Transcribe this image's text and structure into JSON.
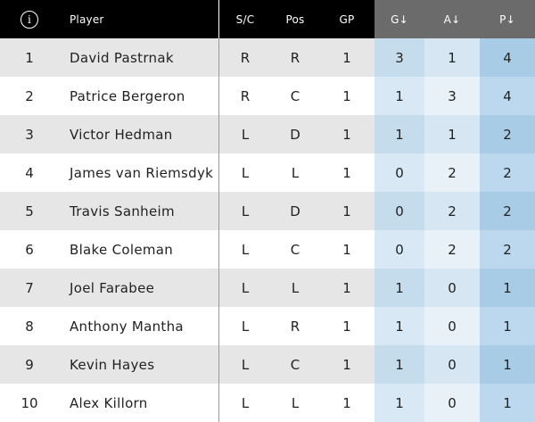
{
  "columns": {
    "player": "Player",
    "sc": "S/C",
    "pos": "Pos",
    "gp": "GP",
    "g": "G↓",
    "a": "A↓",
    "p": "P↓"
  },
  "info_icon": {
    "glyph": "i",
    "icon": "info-icon"
  },
  "colors": {
    "header_bg": "#000000",
    "sorted_header_bg": "#6b6b6b",
    "g_col": "#c4dcec",
    "a_col": "#d6e6f2",
    "p_col": "#a9cce6"
  },
  "rows": [
    {
      "rank": "1",
      "player": "David Pastrnak",
      "sc": "R",
      "pos": "R",
      "gp": "1",
      "g": "3",
      "a": "1",
      "p": "4"
    },
    {
      "rank": "2",
      "player": "Patrice Bergeron",
      "sc": "R",
      "pos": "C",
      "gp": "1",
      "g": "1",
      "a": "3",
      "p": "4"
    },
    {
      "rank": "3",
      "player": "Victor Hedman",
      "sc": "L",
      "pos": "D",
      "gp": "1",
      "g": "1",
      "a": "1",
      "p": "2"
    },
    {
      "rank": "4",
      "player": "James van Riemsdyk",
      "sc": "L",
      "pos": "L",
      "gp": "1",
      "g": "0",
      "a": "2",
      "p": "2"
    },
    {
      "rank": "5",
      "player": "Travis Sanheim",
      "sc": "L",
      "pos": "D",
      "gp": "1",
      "g": "0",
      "a": "2",
      "p": "2"
    },
    {
      "rank": "6",
      "player": "Blake Coleman",
      "sc": "L",
      "pos": "C",
      "gp": "1",
      "g": "0",
      "a": "2",
      "p": "2"
    },
    {
      "rank": "7",
      "player": "Joel Farabee",
      "sc": "L",
      "pos": "L",
      "gp": "1",
      "g": "1",
      "a": "0",
      "p": "1"
    },
    {
      "rank": "8",
      "player": "Anthony Mantha",
      "sc": "L",
      "pos": "R",
      "gp": "1",
      "g": "1",
      "a": "0",
      "p": "1"
    },
    {
      "rank": "9",
      "player": "Kevin Hayes",
      "sc": "L",
      "pos": "C",
      "gp": "1",
      "g": "1",
      "a": "0",
      "p": "1"
    },
    {
      "rank": "10",
      "player": "Alex Killorn",
      "sc": "L",
      "pos": "L",
      "gp": "1",
      "g": "1",
      "a": "0",
      "p": "1"
    }
  ]
}
